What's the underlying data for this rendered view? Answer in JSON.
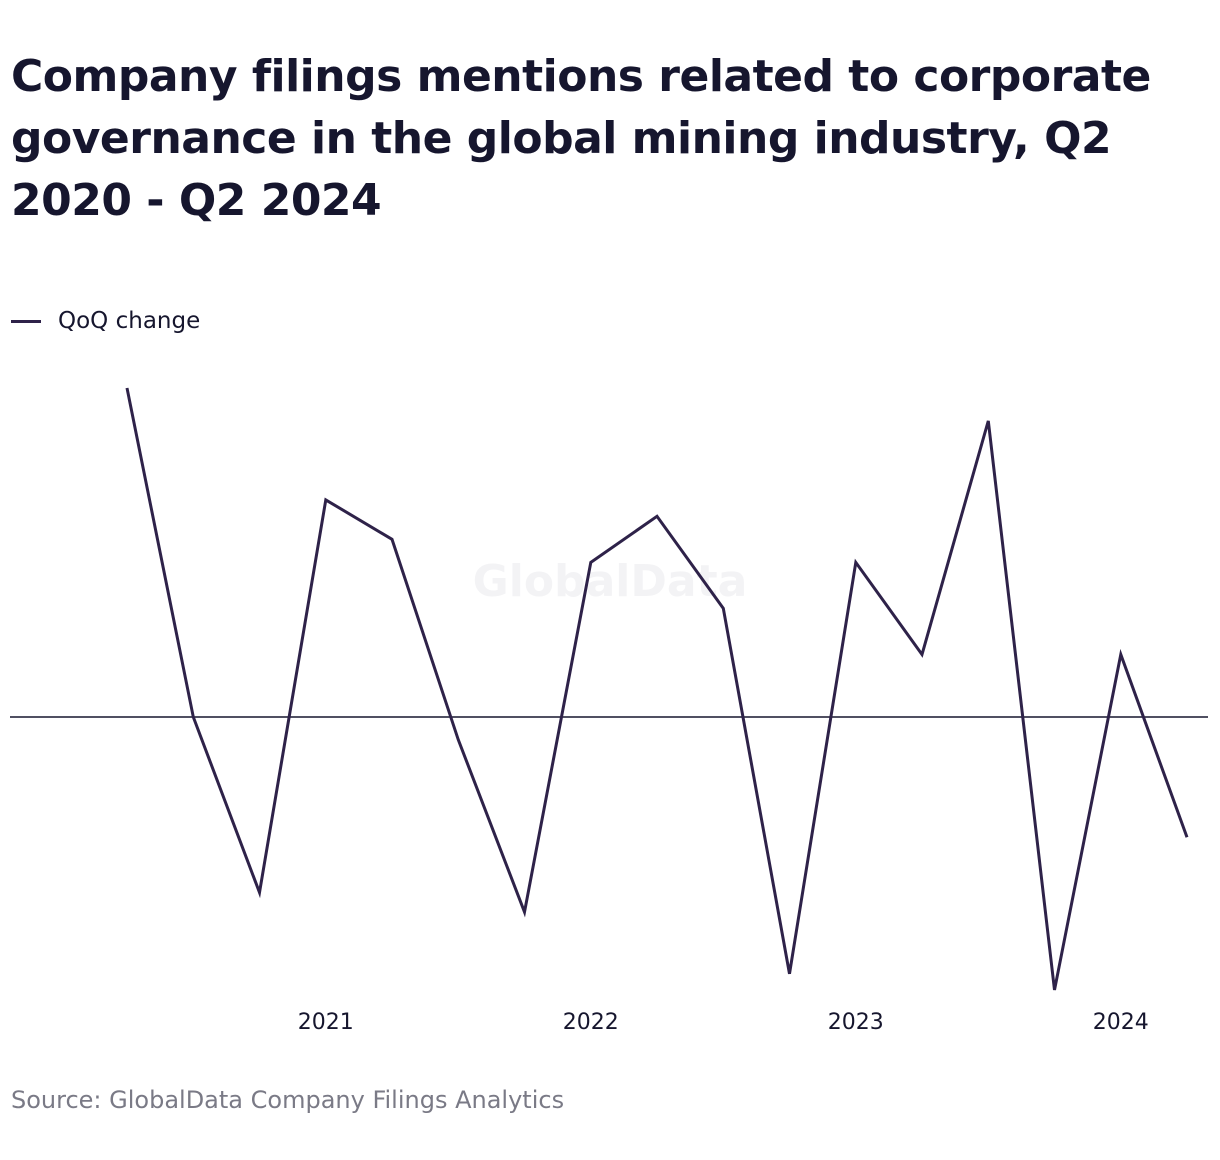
{
  "title": "Company filings mentions related to corporate governance in the global mining industry, Q2 2020 - Q2 2024",
  "source": "Source: GlobalData Company Filings Analytics",
  "watermark": "GlobalData",
  "colors": {
    "line": "#2e2249",
    "zero_line": "#16162e",
    "text": "#16162e",
    "source_text": "#7a7a86"
  },
  "chart_data": {
    "type": "line",
    "title": "Company filings mentions related to corporate governance in the global mining industry, Q2 2020 - Q2 2024",
    "xlabel": "",
    "ylabel": "",
    "x": [
      "Q2 2020",
      "Q3 2020",
      "Q4 2020",
      "Q1 2021",
      "Q2 2021",
      "Q3 2021",
      "Q4 2021",
      "Q1 2022",
      "Q2 2022",
      "Q3 2022",
      "Q4 2022",
      "Q1 2023",
      "Q2 2023",
      "Q3 2023",
      "Q4 2023",
      "Q1 2024",
      "Q2 2024"
    ],
    "x_tick_labels": [
      {
        "label": "2021",
        "at": "Q1 2021"
      },
      {
        "label": "2022",
        "at": "Q1 2022"
      },
      {
        "label": "2023",
        "at": "Q1 2023"
      },
      {
        "label": "2024",
        "at": "Q1 2024"
      }
    ],
    "series": [
      {
        "name": "QoQ change",
        "color": "#2e2249",
        "values": [
          100,
          0,
          -54,
          66,
          54,
          -7,
          -60,
          47,
          61,
          33,
          -79,
          47,
          19,
          90,
          -84,
          19,
          -37
        ]
      }
    ],
    "ylim": [
      -84,
      100
    ],
    "zero_line": true,
    "grid": false,
    "y_axis_labels": false,
    "legend": "top-left"
  }
}
